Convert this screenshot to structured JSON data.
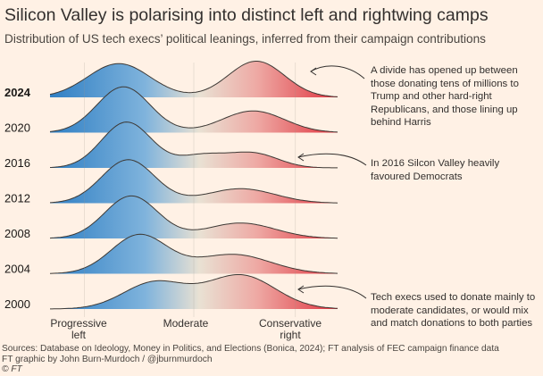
{
  "title": "Silicon Valley is polarising into distinct left and rightwing camps",
  "subtitle": "Distribution of US tech execs’ political leanings, inferred from their campaign contributions",
  "colors": {
    "left": "#2f7fc4",
    "middle": "#e9e1d3",
    "right": "#e0343f",
    "background": "#fff1e5"
  },
  "annotations": {
    "a2024": "A divide has opened up between those donating tens of millions to Trump and other hard-right Republicans, and those lining up behind Harris",
    "a2016": "In 2016 Silcon Valley heavily favoured Democrats",
    "a2000": "Tech execs used to donate mainly to moderate candidates, or would mix and match donations to both parties"
  },
  "x_labels": {
    "progressive_1": "Progressive",
    "progressive_2": "left",
    "moderate": "Moderate",
    "conservative_1": "Conservative",
    "conservative_2": "right"
  },
  "footer": {
    "line1": "Sources: Database on Ideology, Money in Politics, and Elections (Bonica, 2024); FT analysis of FEC campaign finance data",
    "line2": "FT graphic by John Burn-Murdoch / @jburnmurdoch",
    "line3": "© FT"
  },
  "chart_data": {
    "type": "area",
    "xlabel_ticks": [
      "Progressive left",
      "Moderate",
      "Conservative right"
    ],
    "xlim": [
      -1,
      1
    ],
    "series": [
      {
        "name": "2024",
        "peaks": [
          {
            "x": -0.48,
            "height": 0.7,
            "width": 0.2
          },
          {
            "x": 0.4,
            "height": 0.75,
            "width": 0.18
          }
        ]
      },
      {
        "name": "2020",
        "peaks": [
          {
            "x": -0.45,
            "height": 0.95,
            "width": 0.17
          },
          {
            "x": 0.38,
            "height": 0.45,
            "width": 0.2
          }
        ]
      },
      {
        "name": "2016",
        "peaks": [
          {
            "x": -0.43,
            "height": 0.95,
            "width": 0.16
          },
          {
            "x": 0.05,
            "height": 0.25,
            "width": 0.15
          },
          {
            "x": 0.38,
            "height": 0.3,
            "width": 0.16
          }
        ]
      },
      {
        "name": "2012",
        "peaks": [
          {
            "x": -0.42,
            "height": 0.9,
            "width": 0.17
          },
          {
            "x": 0.3,
            "height": 0.3,
            "width": 0.22
          }
        ]
      },
      {
        "name": "2008",
        "peaks": [
          {
            "x": -0.4,
            "height": 0.88,
            "width": 0.17
          },
          {
            "x": 0.3,
            "height": 0.32,
            "width": 0.22
          }
        ]
      },
      {
        "name": "2004",
        "peaks": [
          {
            "x": -0.35,
            "height": 0.8,
            "width": 0.18
          },
          {
            "x": 0.25,
            "height": 0.4,
            "width": 0.24
          }
        ]
      },
      {
        "name": "2000",
        "peaks": [
          {
            "x": -0.25,
            "height": 0.55,
            "width": 0.2
          },
          {
            "x": 0.3,
            "height": 0.7,
            "width": 0.22
          }
        ]
      }
    ]
  }
}
